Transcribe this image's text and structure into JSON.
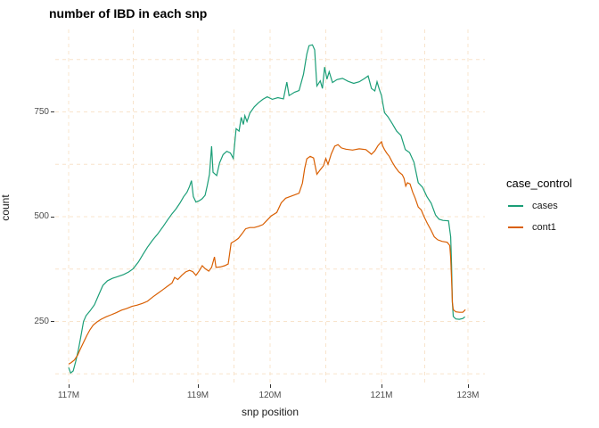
{
  "title": "number of IBD in each snp",
  "legend": {
    "title": "case_control",
    "entries": [
      {
        "label": "cases",
        "color": "#1B9E77"
      },
      {
        "label": "cont1",
        "color": "#D95F02"
      }
    ]
  },
  "chart_data": {
    "type": "line",
    "title": "number of IBD in each snp",
    "xlabel": "snp position",
    "ylabel": "count",
    "legend_title": "case_control",
    "legend_position": "right",
    "grid": "dashed",
    "x_ticks": [
      {
        "label": "117M",
        "pos": 117
      },
      {
        "label": "119M",
        "pos": 119
      },
      {
        "label": "120M",
        "pos": 120
      },
      {
        "label": "121M",
        "pos": 121
      },
      {
        "label": "123M",
        "pos": 123
      }
    ],
    "x_minor": [
      118,
      119.5,
      120.5,
      122
    ],
    "y_ticks": [
      {
        "label": "250",
        "value": 250
      },
      {
        "label": "500",
        "value": 500
      },
      {
        "label": "750",
        "value": 750
      }
    ],
    "y_minor": [
      125,
      375,
      625,
      875
    ],
    "ylim": [
      100,
      945
    ],
    "xlim_M": [
      117,
      123
    ],
    "colors": {
      "cases": "#1B9E77",
      "cont1": "#D95F02",
      "grid": "#F8E4CC"
    },
    "series": [
      {
        "name": "cases",
        "points": [
          [
            117.0,
            140
          ],
          [
            117.03,
            127
          ],
          [
            117.07,
            132
          ],
          [
            117.11,
            155
          ],
          [
            117.15,
            182
          ],
          [
            117.19,
            215
          ],
          [
            117.23,
            250
          ],
          [
            117.27,
            264
          ],
          [
            117.33,
            275
          ],
          [
            117.4,
            290
          ],
          [
            117.47,
            315
          ],
          [
            117.53,
            336
          ],
          [
            117.6,
            347
          ],
          [
            117.68,
            353
          ],
          [
            117.76,
            357
          ],
          [
            117.85,
            362
          ],
          [
            117.93,
            368
          ],
          [
            118.0,
            376
          ],
          [
            118.08,
            392
          ],
          [
            118.15,
            410
          ],
          [
            118.22,
            427
          ],
          [
            118.3,
            444
          ],
          [
            118.38,
            459
          ],
          [
            118.46,
            476
          ],
          [
            118.53,
            492
          ],
          [
            118.6,
            507
          ],
          [
            118.66,
            518
          ],
          [
            118.72,
            532
          ],
          [
            118.78,
            548
          ],
          [
            118.83,
            558
          ],
          [
            118.87,
            572
          ],
          [
            118.9,
            586
          ],
          [
            118.93,
            548
          ],
          [
            118.97,
            535
          ],
          [
            119.02,
            538
          ],
          [
            119.06,
            543
          ],
          [
            119.1,
            551
          ],
          [
            119.13,
            574
          ],
          [
            119.16,
            601
          ],
          [
            119.19,
            668
          ],
          [
            119.21,
            606
          ],
          [
            119.26,
            598
          ],
          [
            119.3,
            628
          ],
          [
            119.35,
            648
          ],
          [
            119.4,
            656
          ],
          [
            119.45,
            652
          ],
          [
            119.49,
            639
          ],
          [
            119.53,
            710
          ],
          [
            119.57,
            704
          ],
          [
            119.6,
            737
          ],
          [
            119.63,
            720
          ],
          [
            119.65,
            741
          ],
          [
            119.68,
            727
          ],
          [
            119.72,
            747
          ],
          [
            119.78,
            762
          ],
          [
            119.84,
            772
          ],
          [
            119.9,
            780
          ],
          [
            119.96,
            786
          ],
          [
            120.02,
            780
          ],
          [
            120.07,
            784
          ],
          [
            120.12,
            781
          ],
          [
            120.15,
            821
          ],
          [
            120.17,
            789
          ],
          [
            120.22,
            797
          ],
          [
            120.26,
            801
          ],
          [
            120.3,
            840
          ],
          [
            120.33,
            888
          ],
          [
            120.35,
            908
          ],
          [
            120.38,
            910
          ],
          [
            120.4,
            898
          ],
          [
            120.42,
            812
          ],
          [
            120.45,
            824
          ],
          [
            120.47,
            806
          ],
          [
            120.49,
            857
          ],
          [
            120.51,
            828
          ],
          [
            120.53,
            846
          ],
          [
            120.56,
            820
          ],
          [
            120.6,
            827
          ],
          [
            120.65,
            830
          ],
          [
            120.7,
            823
          ],
          [
            120.75,
            818
          ],
          [
            120.8,
            822
          ],
          [
            120.85,
            830
          ],
          [
            120.88,
            836
          ],
          [
            120.91,
            806
          ],
          [
            120.94,
            800
          ],
          [
            120.96,
            822
          ],
          [
            120.98,
            804
          ],
          [
            121.0,
            789
          ],
          [
            121.03,
            770
          ],
          [
            121.07,
            748
          ],
          [
            121.15,
            738
          ],
          [
            121.25,
            722
          ],
          [
            121.35,
            704
          ],
          [
            121.45,
            694
          ],
          [
            121.55,
            660
          ],
          [
            121.65,
            653
          ],
          [
            121.75,
            630
          ],
          [
            121.85,
            581
          ],
          [
            121.95,
            570
          ],
          [
            122.05,
            548
          ],
          [
            122.15,
            532
          ],
          [
            122.25,
            504
          ],
          [
            122.33,
            494
          ],
          [
            122.42,
            491
          ],
          [
            122.55,
            490
          ],
          [
            122.6,
            452
          ],
          [
            122.62,
            385
          ],
          [
            122.64,
            295
          ],
          [
            122.66,
            262
          ],
          [
            122.72,
            256
          ],
          [
            122.8,
            255
          ],
          [
            122.88,
            257
          ],
          [
            122.93,
            261
          ]
        ]
      },
      {
        "name": "cont1",
        "points": [
          [
            117.0,
            148
          ],
          [
            117.04,
            152
          ],
          [
            117.09,
            158
          ],
          [
            117.14,
            170
          ],
          [
            117.18,
            184
          ],
          [
            117.23,
            200
          ],
          [
            117.28,
            216
          ],
          [
            117.33,
            230
          ],
          [
            117.38,
            241
          ],
          [
            117.44,
            249
          ],
          [
            117.5,
            255
          ],
          [
            117.58,
            261
          ],
          [
            117.66,
            266
          ],
          [
            117.74,
            271
          ],
          [
            117.82,
            277
          ],
          [
            117.9,
            281
          ],
          [
            117.98,
            286
          ],
          [
            118.06,
            289
          ],
          [
            118.14,
            293
          ],
          [
            118.22,
            298
          ],
          [
            118.3,
            308
          ],
          [
            118.38,
            317
          ],
          [
            118.46,
            326
          ],
          [
            118.53,
            334
          ],
          [
            118.6,
            342
          ],
          [
            118.64,
            355
          ],
          [
            118.69,
            350
          ],
          [
            118.75,
            360
          ],
          [
            118.81,
            368
          ],
          [
            118.87,
            372
          ],
          [
            118.92,
            369
          ],
          [
            118.97,
            360
          ],
          [
            119.02,
            371
          ],
          [
            119.06,
            383
          ],
          [
            119.1,
            376
          ],
          [
            119.15,
            370
          ],
          [
            119.19,
            379
          ],
          [
            119.23,
            404
          ],
          [
            119.25,
            379
          ],
          [
            119.31,
            380
          ],
          [
            119.37,
            383
          ],
          [
            119.42,
            387
          ],
          [
            119.46,
            437
          ],
          [
            119.51,
            442
          ],
          [
            119.56,
            448
          ],
          [
            119.61,
            459
          ],
          [
            119.66,
            471
          ],
          [
            119.72,
            474
          ],
          [
            119.78,
            474
          ],
          [
            119.84,
            477
          ],
          [
            119.9,
            481
          ],
          [
            119.96,
            492
          ],
          [
            120.01,
            502
          ],
          [
            120.06,
            510
          ],
          [
            120.1,
            533
          ],
          [
            120.14,
            544
          ],
          [
            120.18,
            548
          ],
          [
            120.22,
            552
          ],
          [
            120.26,
            556
          ],
          [
            120.29,
            580
          ],
          [
            120.31,
            615
          ],
          [
            120.33,
            638
          ],
          [
            120.36,
            644
          ],
          [
            120.39,
            640
          ],
          [
            120.42,
            601
          ],
          [
            120.45,
            612
          ],
          [
            120.48,
            622
          ],
          [
            120.5,
            639
          ],
          [
            120.52,
            625
          ],
          [
            120.55,
            650
          ],
          [
            120.58,
            668
          ],
          [
            120.61,
            672
          ],
          [
            120.64,
            664
          ],
          [
            120.68,
            661
          ],
          [
            120.74,
            659
          ],
          [
            120.8,
            662
          ],
          [
            120.86,
            660
          ],
          [
            120.91,
            649
          ],
          [
            120.94,
            657
          ],
          [
            120.97,
            670
          ],
          [
            121.0,
            679
          ],
          [
            121.03,
            668
          ],
          [
            121.07,
            660
          ],
          [
            121.12,
            652
          ],
          [
            121.18,
            644
          ],
          [
            121.25,
            630
          ],
          [
            121.32,
            618
          ],
          [
            121.4,
            607
          ],
          [
            121.48,
            600
          ],
          [
            121.52,
            592
          ],
          [
            121.56,
            573
          ],
          [
            121.6,
            581
          ],
          [
            121.66,
            578
          ],
          [
            121.72,
            559
          ],
          [
            121.78,
            544
          ],
          [
            121.85,
            523
          ],
          [
            121.92,
            516
          ],
          [
            121.98,
            501
          ],
          [
            122.06,
            484
          ],
          [
            122.14,
            469
          ],
          [
            122.22,
            452
          ],
          [
            122.3,
            445
          ],
          [
            122.4,
            441
          ],
          [
            122.52,
            439
          ],
          [
            122.58,
            431
          ],
          [
            122.6,
            402
          ],
          [
            122.62,
            350
          ],
          [
            122.64,
            296
          ],
          [
            122.66,
            278
          ],
          [
            122.72,
            273
          ],
          [
            122.8,
            272
          ],
          [
            122.88,
            272
          ],
          [
            122.94,
            278
          ]
        ]
      }
    ]
  }
}
